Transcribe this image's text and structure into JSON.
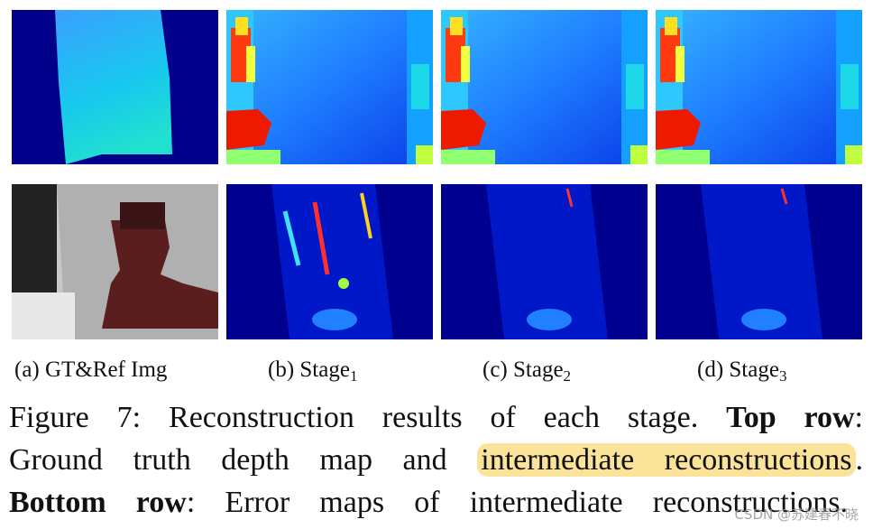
{
  "subcaptions": [
    {
      "label": "(a)",
      "text": "GT&Ref Img"
    },
    {
      "label": "(b)",
      "text": "Stage",
      "subscript": "1"
    },
    {
      "label": "(c)",
      "text": "Stage",
      "subscript": "2"
    },
    {
      "label": "(d)",
      "text": "Stage",
      "subscript": "3"
    }
  ],
  "caption": {
    "line1": {
      "lead": "Figure 7:",
      "text": "Reconstruction results of each stage.",
      "bold": "Top row",
      "tail": ":"
    },
    "line2": {
      "text": "Ground truth depth map and",
      "highlight": "intermediate reconstructions",
      "tail": "."
    },
    "line3": {
      "bold": "Bottom row",
      "text": ": Error maps of intermediate reconstructions."
    }
  },
  "watermark": "CSDN @苏建春不晓"
}
